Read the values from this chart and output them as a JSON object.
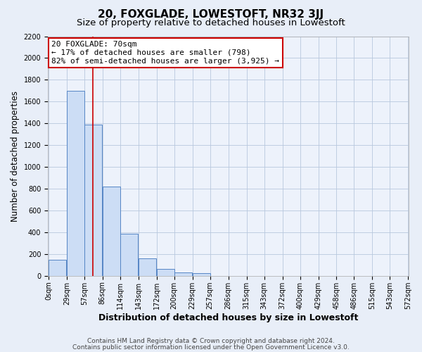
{
  "title": "20, FOXGLADE, LOWESTOFT, NR32 3JJ",
  "subtitle": "Size of property relative to detached houses in Lowestoft",
  "xlabel": "Distribution of detached houses by size in Lowestoft",
  "ylabel": "Number of detached properties",
  "bar_values": [
    150,
    1700,
    1390,
    820,
    385,
    160,
    65,
    30,
    25,
    0,
    0,
    0,
    0,
    0,
    0,
    0,
    0,
    0,
    0,
    0
  ],
  "bar_left_edges": [
    0,
    29,
    57,
    86,
    114,
    143,
    172,
    200,
    229,
    257,
    286,
    315,
    343,
    372,
    400,
    429,
    458,
    486,
    515,
    543
  ],
  "bar_width": 28.5,
  "x_tick_labels": [
    "0sqm",
    "29sqm",
    "57sqm",
    "86sqm",
    "114sqm",
    "143sqm",
    "172sqm",
    "200sqm",
    "229sqm",
    "257sqm",
    "286sqm",
    "315sqm",
    "343sqm",
    "372sqm",
    "400sqm",
    "429sqm",
    "458sqm",
    "486sqm",
    "515sqm",
    "543sqm",
    "572sqm"
  ],
  "ylim": [
    0,
    2200
  ],
  "yticks": [
    0,
    200,
    400,
    600,
    800,
    1000,
    1200,
    1400,
    1600,
    1800,
    2000,
    2200
  ],
  "bar_fill_color": "#ccddf5",
  "bar_edge_color": "#5585c5",
  "vline_x": 70,
  "vline_color": "#cc0000",
  "annotation_line1": "20 FOXGLADE: 70sqm",
  "annotation_line2": "← 17% of detached houses are smaller (798)",
  "annotation_line3": "82% of semi-detached houses are larger (3,925) →",
  "annotation_box_color": "#ffffff",
  "annotation_box_edge_color": "#cc0000",
  "title_fontsize": 11,
  "subtitle_fontsize": 9.5,
  "xlabel_fontsize": 9,
  "ylabel_fontsize": 8.5,
  "tick_fontsize": 7,
  "annotation_fontsize": 8,
  "footer_line1": "Contains HM Land Registry data © Crown copyright and database right 2024.",
  "footer_line2": "Contains public sector information licensed under the Open Government Licence v3.0.",
  "background_color": "#e8eef8",
  "plot_background_color": "#edf2fb",
  "grid_color": "#b8c8de"
}
